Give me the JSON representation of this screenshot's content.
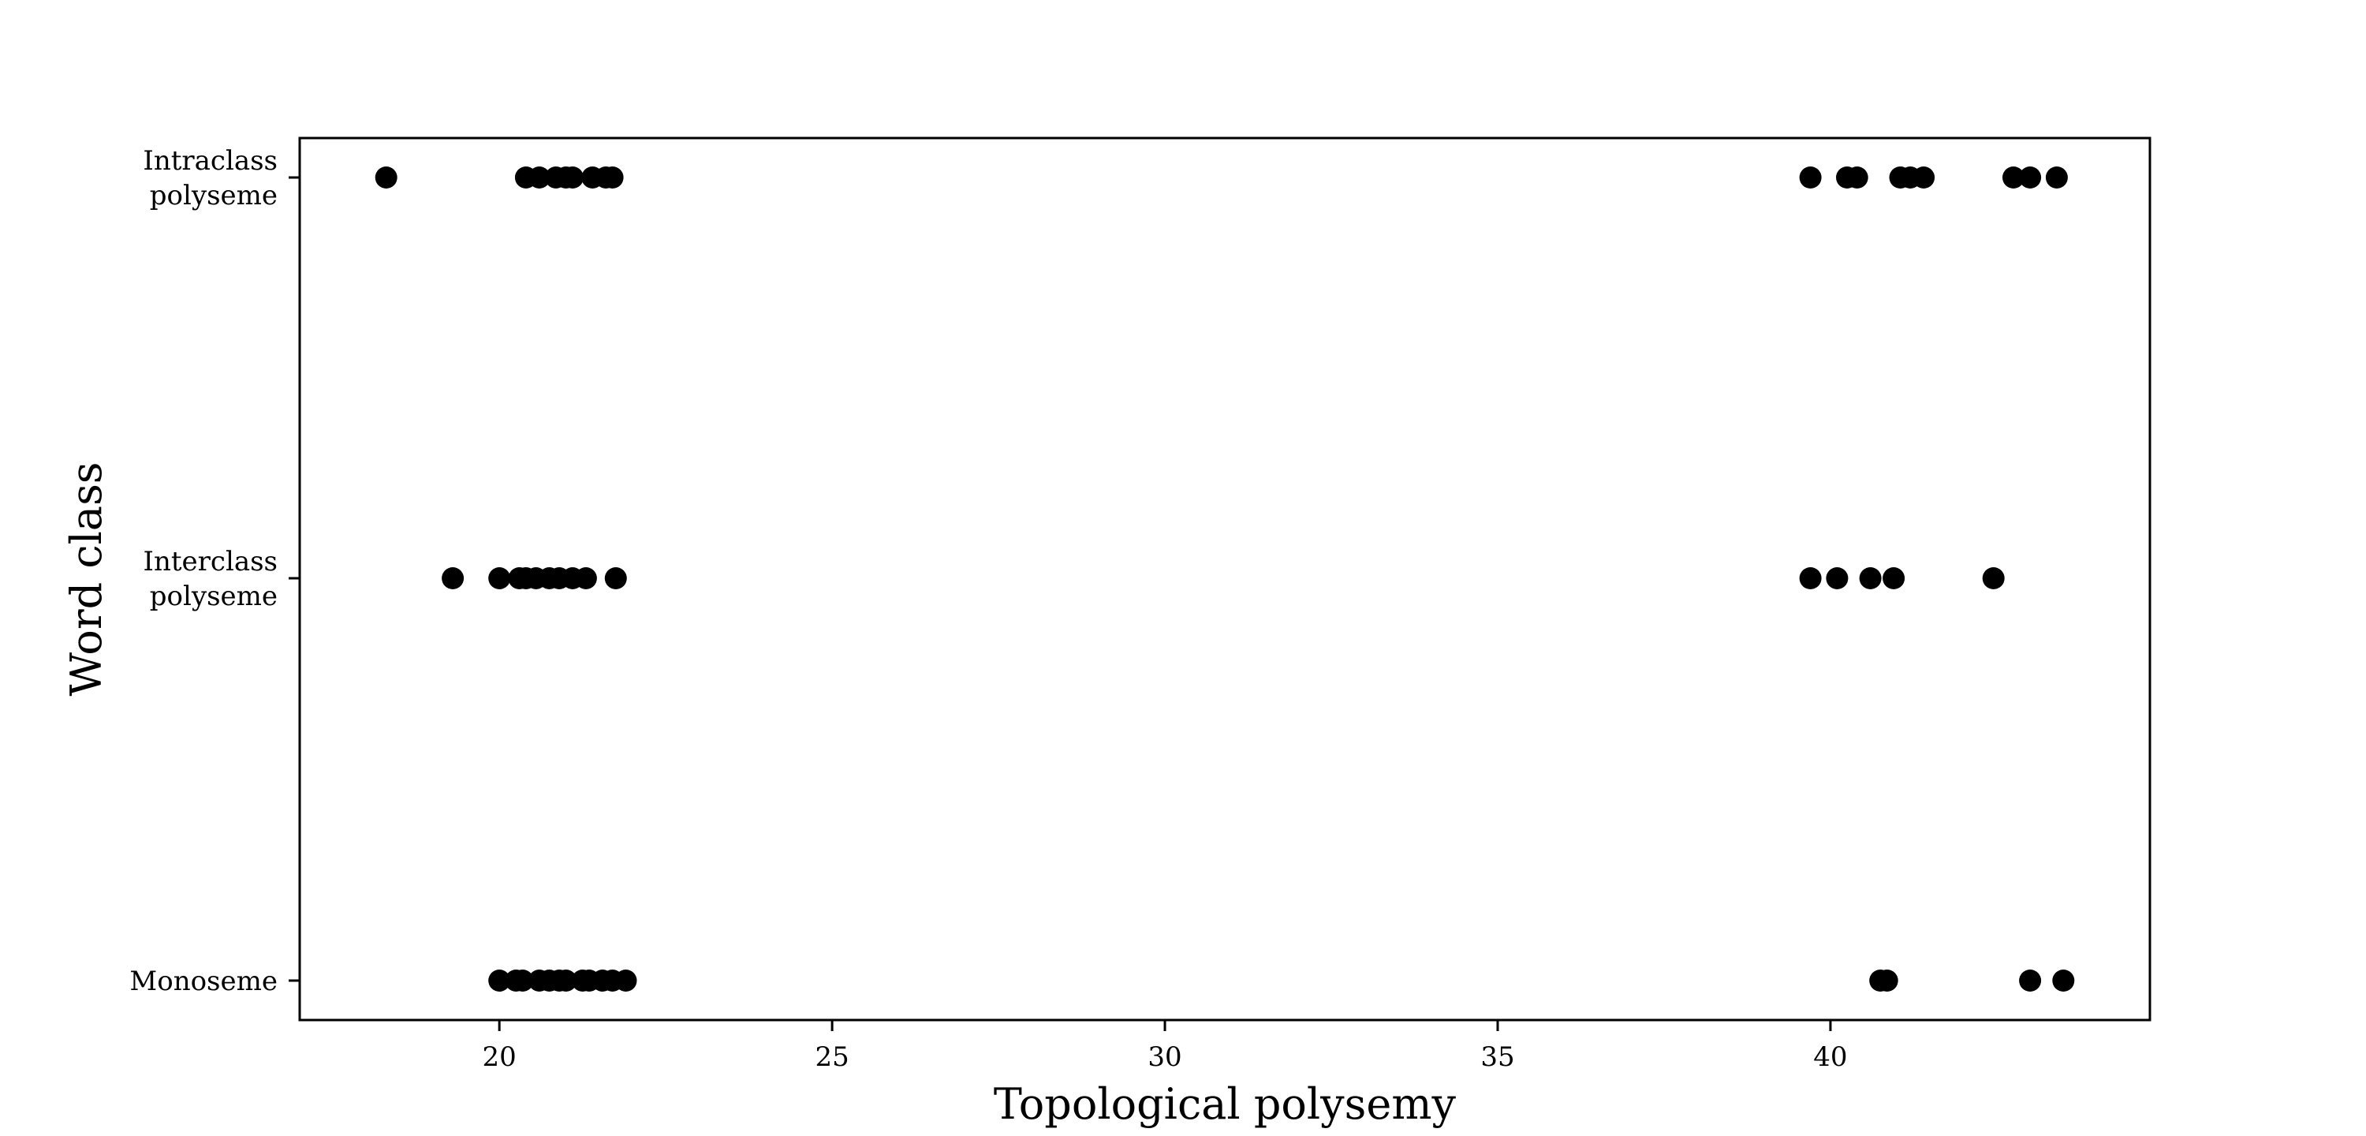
{
  "chart_data": {
    "type": "scatter",
    "title": "",
    "xlabel": "Topological polysemy",
    "ylabel": "Word class",
    "xlim": [
      17,
      44.8
    ],
    "xticks": [
      20,
      25,
      30,
      35,
      40
    ],
    "categories": [
      "Monoseme",
      "Interclass polyseme",
      "Intraclass polyseme"
    ],
    "category_labels": [
      [
        "Monoseme"
      ],
      [
        "Interclass",
        "polyseme"
      ],
      [
        "Intraclass",
        "polyseme"
      ]
    ],
    "grid": false,
    "legend": "none",
    "marker_color": "#000000",
    "series": [
      {
        "category": "Intraclass polyseme",
        "x": [
          18.3,
          20.4,
          20.6,
          20.85,
          21.0,
          21.1,
          21.4,
          21.6,
          21.7,
          39.7,
          40.25,
          40.4,
          41.05,
          41.2,
          41.4,
          42.75,
          43.0,
          43.4
        ]
      },
      {
        "category": "Interclass polyseme",
        "x": [
          19.3,
          20.0,
          20.3,
          20.4,
          20.55,
          20.75,
          20.9,
          21.1,
          21.3,
          21.75,
          39.7,
          40.1,
          40.6,
          40.95,
          42.45
        ]
      },
      {
        "category": "Monoseme",
        "x": [
          20.0,
          20.25,
          20.35,
          20.6,
          20.75,
          20.9,
          21.0,
          21.25,
          21.35,
          21.55,
          21.7,
          21.9,
          40.75,
          40.85,
          43.0,
          43.5
        ]
      }
    ]
  }
}
